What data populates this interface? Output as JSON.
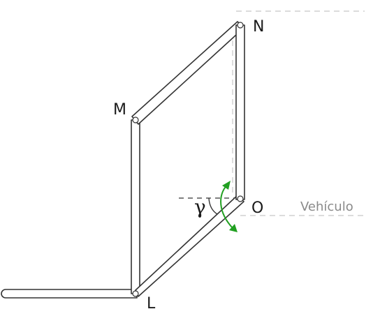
{
  "labels": {
    "point_n": "N",
    "point_m": "M",
    "point_o": "O",
    "point_l": "L",
    "angle": "γ",
    "reference": "Vehículo"
  },
  "colors": {
    "bar_stroke": "#333333",
    "rotation_arrow": "#22a022",
    "guide_lines": "#c8c8c8",
    "reference_text": "#8a8a8a"
  }
}
